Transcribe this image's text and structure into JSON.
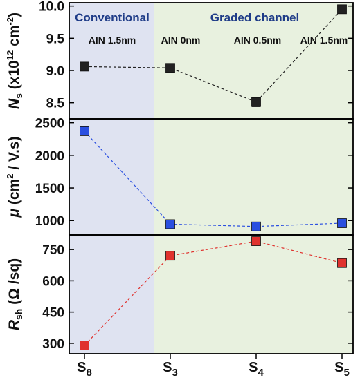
{
  "colors": {
    "conventional_bg": "#dfe3f1",
    "graded_bg": "#e8f1df",
    "region_text": "#1f3c88",
    "ns_series": "#222222",
    "mu_series": "#2a4fe0",
    "rsh_series": "#e0322e",
    "axis": "#000000"
  },
  "chart_data": [
    {
      "type": "line",
      "panel": "top",
      "ylabel": {
        "main": "N",
        "sub": "s",
        "rest": " (x10",
        "sup": "12",
        "tail": " cm",
        "tail_sup": "-2",
        "close": ")"
      },
      "ylim": [
        8.25,
        10.05
      ],
      "yticks": [
        8.5,
        9.0,
        9.5,
        10.0
      ],
      "ytick_labels": [
        "8.5",
        "9.0",
        "9.5",
        "10.0"
      ],
      "x": [
        0,
        1,
        2,
        3
      ],
      "values": [
        9.06,
        9.04,
        8.51,
        9.95
      ],
      "errors": [
        0,
        0,
        0.07,
        0
      ]
    },
    {
      "type": "line",
      "panel": "middle",
      "ylabel": {
        "main": "μ",
        "rest": " (cm",
        "sup": "2",
        "tail": " / V.s)"
      },
      "ylim": [
        780,
        2560
      ],
      "yticks": [
        1000,
        1500,
        2000,
        2500
      ],
      "ytick_labels": [
        "1000",
        "1500",
        "2000",
        "2500"
      ],
      "x": [
        0,
        1,
        2,
        3
      ],
      "values": [
        2370,
        945,
        910,
        960
      ]
    },
    {
      "type": "line",
      "panel": "bottom",
      "ylabel": {
        "main": "R",
        "sub": "sh",
        "rest": " (Ω /sq)"
      },
      "ylim": [
        250,
        820
      ],
      "yticks": [
        300,
        450,
        600,
        750
      ],
      "ytick_labels": [
        "300",
        "450",
        "600",
        "750"
      ],
      "x": [
        0,
        1,
        2,
        3
      ],
      "values": [
        290,
        720,
        790,
        685
      ]
    }
  ],
  "x_categories": [
    {
      "main": "S",
      "sub": "8"
    },
    {
      "main": "S",
      "sub": "3"
    },
    {
      "main": "S",
      "sub": "4"
    },
    {
      "main": "S",
      "sub": "5"
    }
  ],
  "regions": {
    "conventional": "Conventional",
    "graded": "Graded channel"
  },
  "sample_labels": [
    "AlN 1.5nm",
    "AlN 0nm",
    "AlN 0.5nm",
    "AlN 1.5nm"
  ]
}
